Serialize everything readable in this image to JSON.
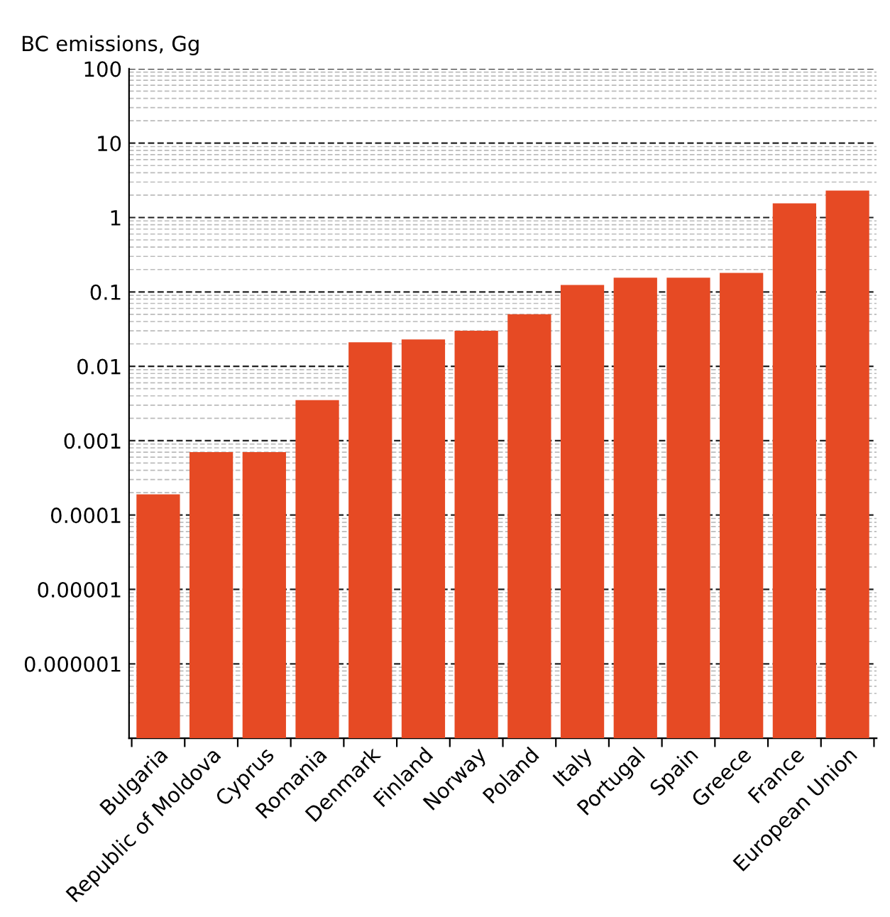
{
  "chart_data": {
    "type": "bar",
    "ylabel": "BC emissions, Gg",
    "categories": [
      "Bulgaria",
      "Republic of Moldova",
      "Cyprus",
      "Romania",
      "Denmark",
      "Finland",
      "Norway",
      "Poland",
      "Italy",
      "Portugal",
      "Spain",
      "Greece",
      "France",
      "European Union"
    ],
    "values": [
      0.00019,
      0.0007,
      0.0007,
      0.0035,
      0.021,
      0.023,
      0.03,
      0.05,
      0.124,
      0.155,
      0.155,
      0.18,
      1.55,
      2.3
    ],
    "color": "#e64a24",
    "log": "y",
    "ylim": [
      1e-07,
      100
    ],
    "yticks": [
      {
        "value": 1e-06,
        "label": "0.000001"
      },
      {
        "value": 1e-05,
        "label": "0.00001"
      },
      {
        "value": 0.0001,
        "label": "0.0001"
      },
      {
        "value": 0.001,
        "label": "0.001"
      },
      {
        "value": 0.01,
        "label": "0.01"
      },
      {
        "value": 0.1,
        "label": "0.1"
      },
      {
        "value": 1,
        "label": "1"
      },
      {
        "value": 10,
        "label": "10"
      },
      {
        "value": 100,
        "label": "100"
      }
    ],
    "grid": "y"
  }
}
